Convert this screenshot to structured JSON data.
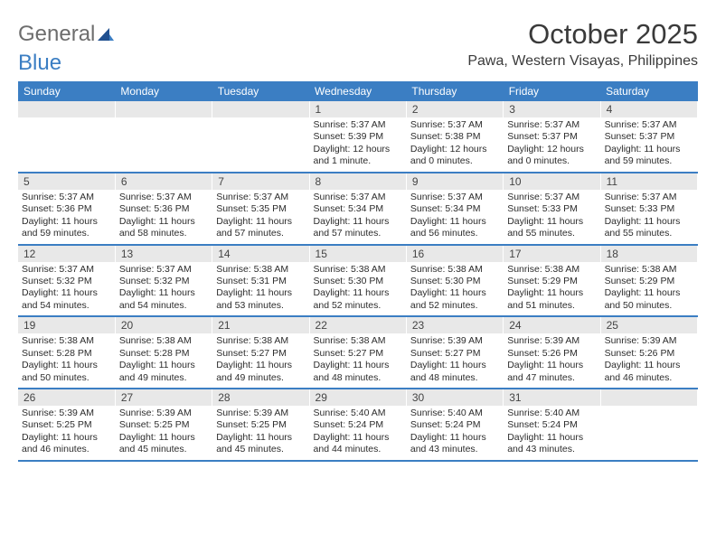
{
  "logo": {
    "gray": "General",
    "blue": "Blue"
  },
  "title": {
    "month": "October 2025",
    "location": "Pawa, Western Visayas, Philippines"
  },
  "style": {
    "header_bg": "#3b7ec3",
    "header_fg": "#ffffff",
    "daynum_bg": "#e8e8e8",
    "text_color": "#2c2c2c",
    "row_border": "#3b7ec3",
    "logo_gray": "#6d6d6d",
    "logo_blue": "#3b7ec3",
    "page_bg": "#ffffff",
    "header_fontsize": 12,
    "title_fontsize": 31,
    "location_fontsize": 16,
    "cell_fontsize": 10.5
  },
  "weekdays": [
    "Sunday",
    "Monday",
    "Tuesday",
    "Wednesday",
    "Thursday",
    "Friday",
    "Saturday"
  ],
  "weeks": [
    [
      {
        "n": "",
        "sr": "",
        "ss": "",
        "dl": ""
      },
      {
        "n": "",
        "sr": "",
        "ss": "",
        "dl": ""
      },
      {
        "n": "",
        "sr": "",
        "ss": "",
        "dl": ""
      },
      {
        "n": "1",
        "sr": "Sunrise: 5:37 AM",
        "ss": "Sunset: 5:39 PM",
        "dl": "Daylight: 12 hours and 1 minute."
      },
      {
        "n": "2",
        "sr": "Sunrise: 5:37 AM",
        "ss": "Sunset: 5:38 PM",
        "dl": "Daylight: 12 hours and 0 minutes."
      },
      {
        "n": "3",
        "sr": "Sunrise: 5:37 AM",
        "ss": "Sunset: 5:37 PM",
        "dl": "Daylight: 12 hours and 0 minutes."
      },
      {
        "n": "4",
        "sr": "Sunrise: 5:37 AM",
        "ss": "Sunset: 5:37 PM",
        "dl": "Daylight: 11 hours and 59 minutes."
      }
    ],
    [
      {
        "n": "5",
        "sr": "Sunrise: 5:37 AM",
        "ss": "Sunset: 5:36 PM",
        "dl": "Daylight: 11 hours and 59 minutes."
      },
      {
        "n": "6",
        "sr": "Sunrise: 5:37 AM",
        "ss": "Sunset: 5:36 PM",
        "dl": "Daylight: 11 hours and 58 minutes."
      },
      {
        "n": "7",
        "sr": "Sunrise: 5:37 AM",
        "ss": "Sunset: 5:35 PM",
        "dl": "Daylight: 11 hours and 57 minutes."
      },
      {
        "n": "8",
        "sr": "Sunrise: 5:37 AM",
        "ss": "Sunset: 5:34 PM",
        "dl": "Daylight: 11 hours and 57 minutes."
      },
      {
        "n": "9",
        "sr": "Sunrise: 5:37 AM",
        "ss": "Sunset: 5:34 PM",
        "dl": "Daylight: 11 hours and 56 minutes."
      },
      {
        "n": "10",
        "sr": "Sunrise: 5:37 AM",
        "ss": "Sunset: 5:33 PM",
        "dl": "Daylight: 11 hours and 55 minutes."
      },
      {
        "n": "11",
        "sr": "Sunrise: 5:37 AM",
        "ss": "Sunset: 5:33 PM",
        "dl": "Daylight: 11 hours and 55 minutes."
      }
    ],
    [
      {
        "n": "12",
        "sr": "Sunrise: 5:37 AM",
        "ss": "Sunset: 5:32 PM",
        "dl": "Daylight: 11 hours and 54 minutes."
      },
      {
        "n": "13",
        "sr": "Sunrise: 5:37 AM",
        "ss": "Sunset: 5:32 PM",
        "dl": "Daylight: 11 hours and 54 minutes."
      },
      {
        "n": "14",
        "sr": "Sunrise: 5:38 AM",
        "ss": "Sunset: 5:31 PM",
        "dl": "Daylight: 11 hours and 53 minutes."
      },
      {
        "n": "15",
        "sr": "Sunrise: 5:38 AM",
        "ss": "Sunset: 5:30 PM",
        "dl": "Daylight: 11 hours and 52 minutes."
      },
      {
        "n": "16",
        "sr": "Sunrise: 5:38 AM",
        "ss": "Sunset: 5:30 PM",
        "dl": "Daylight: 11 hours and 52 minutes."
      },
      {
        "n": "17",
        "sr": "Sunrise: 5:38 AM",
        "ss": "Sunset: 5:29 PM",
        "dl": "Daylight: 11 hours and 51 minutes."
      },
      {
        "n": "18",
        "sr": "Sunrise: 5:38 AM",
        "ss": "Sunset: 5:29 PM",
        "dl": "Daylight: 11 hours and 50 minutes."
      }
    ],
    [
      {
        "n": "19",
        "sr": "Sunrise: 5:38 AM",
        "ss": "Sunset: 5:28 PM",
        "dl": "Daylight: 11 hours and 50 minutes."
      },
      {
        "n": "20",
        "sr": "Sunrise: 5:38 AM",
        "ss": "Sunset: 5:28 PM",
        "dl": "Daylight: 11 hours and 49 minutes."
      },
      {
        "n": "21",
        "sr": "Sunrise: 5:38 AM",
        "ss": "Sunset: 5:27 PM",
        "dl": "Daylight: 11 hours and 49 minutes."
      },
      {
        "n": "22",
        "sr": "Sunrise: 5:38 AM",
        "ss": "Sunset: 5:27 PM",
        "dl": "Daylight: 11 hours and 48 minutes."
      },
      {
        "n": "23",
        "sr": "Sunrise: 5:39 AM",
        "ss": "Sunset: 5:27 PM",
        "dl": "Daylight: 11 hours and 48 minutes."
      },
      {
        "n": "24",
        "sr": "Sunrise: 5:39 AM",
        "ss": "Sunset: 5:26 PM",
        "dl": "Daylight: 11 hours and 47 minutes."
      },
      {
        "n": "25",
        "sr": "Sunrise: 5:39 AM",
        "ss": "Sunset: 5:26 PM",
        "dl": "Daylight: 11 hours and 46 minutes."
      }
    ],
    [
      {
        "n": "26",
        "sr": "Sunrise: 5:39 AM",
        "ss": "Sunset: 5:25 PM",
        "dl": "Daylight: 11 hours and 46 minutes."
      },
      {
        "n": "27",
        "sr": "Sunrise: 5:39 AM",
        "ss": "Sunset: 5:25 PM",
        "dl": "Daylight: 11 hours and 45 minutes."
      },
      {
        "n": "28",
        "sr": "Sunrise: 5:39 AM",
        "ss": "Sunset: 5:25 PM",
        "dl": "Daylight: 11 hours and 45 minutes."
      },
      {
        "n": "29",
        "sr": "Sunrise: 5:40 AM",
        "ss": "Sunset: 5:24 PM",
        "dl": "Daylight: 11 hours and 44 minutes."
      },
      {
        "n": "30",
        "sr": "Sunrise: 5:40 AM",
        "ss": "Sunset: 5:24 PM",
        "dl": "Daylight: 11 hours and 43 minutes."
      },
      {
        "n": "31",
        "sr": "Sunrise: 5:40 AM",
        "ss": "Sunset: 5:24 PM",
        "dl": "Daylight: 11 hours and 43 minutes."
      },
      {
        "n": "",
        "sr": "",
        "ss": "",
        "dl": ""
      }
    ]
  ]
}
